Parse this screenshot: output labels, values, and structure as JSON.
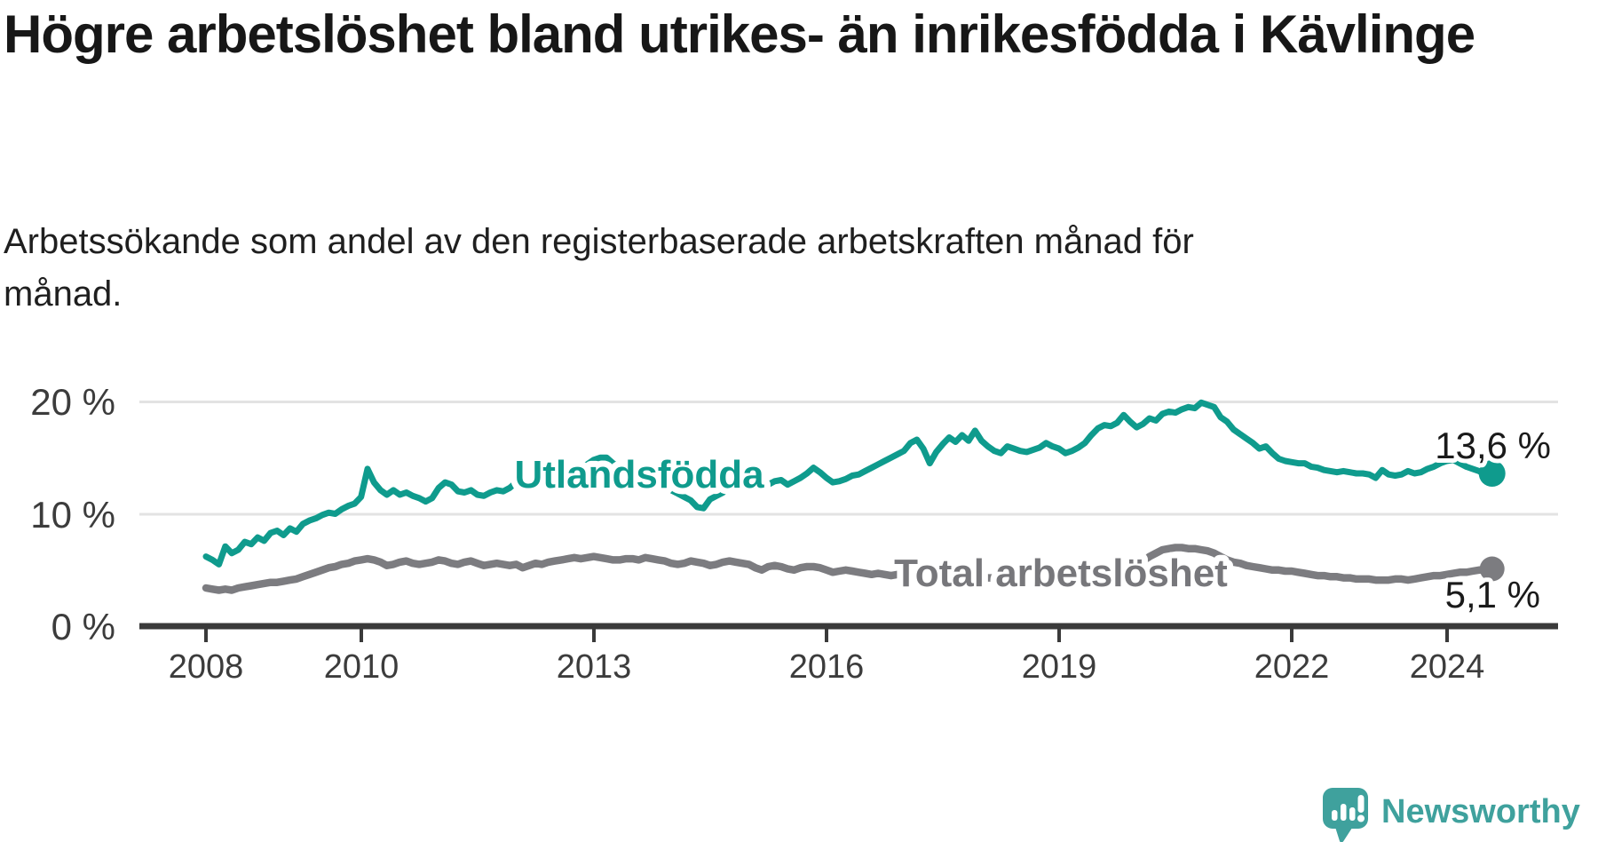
{
  "header": {
    "title": "Högre arbetslöshet bland utrikes- än inrikesfödda i Kävlinge",
    "subtitle": "Arbetssökande som andel av den registerbaserade arbetskraften månad för månad."
  },
  "chart_data": {
    "type": "line",
    "title": "Högre arbetslöshet bland utrikes- än inrikesfödda i Kävlinge",
    "xlabel": "",
    "ylabel": "",
    "x_start": 2008.0,
    "x_step_years": 0.083333,
    "x_range": [
      2008.0,
      2024.583
    ],
    "ylim": [
      0,
      21
    ],
    "grid": "horizontal",
    "legend_position": "inline-labels",
    "y_ticks": [
      {
        "value": 0,
        "label": "0 %"
      },
      {
        "value": 10,
        "label": "10 %"
      },
      {
        "value": 20,
        "label": "20 %"
      }
    ],
    "x_ticks": [
      {
        "value": 2008,
        "label": "2008"
      },
      {
        "value": 2010,
        "label": "2010"
      },
      {
        "value": 2013,
        "label": "2013"
      },
      {
        "value": 2016,
        "label": "2016"
      },
      {
        "value": 2019,
        "label": "2019"
      },
      {
        "value": 2022,
        "label": "2022"
      },
      {
        "value": 2024,
        "label": "2024"
      }
    ],
    "series": [
      {
        "id": "utlandsfodda",
        "label": "Utlandsfödda",
        "color": "#0f9b8d",
        "end_label": "13,6 %",
        "end_value": 13.6,
        "values": [
          6.2,
          5.9,
          5.5,
          7.1,
          6.5,
          6.8,
          7.5,
          7.3,
          7.9,
          7.6,
          8.3,
          8.5,
          8.1,
          8.7,
          8.4,
          9.1,
          9.4,
          9.6,
          9.9,
          10.1,
          10.0,
          10.4,
          10.7,
          10.9,
          11.5,
          14.0,
          12.8,
          12.1,
          11.7,
          12.1,
          11.7,
          11.9,
          11.6,
          11.4,
          11.1,
          11.4,
          12.3,
          12.8,
          12.6,
          12.0,
          11.9,
          12.1,
          11.7,
          11.6,
          11.9,
          12.1,
          12.0,
          12.3,
          12.8,
          12.7,
          12.9,
          13.0,
          12.9,
          13.1,
          13.2,
          13.1,
          13.4,
          13.7,
          14.1,
          14.4,
          14.8,
          15.0,
          15.0,
          14.5,
          14.1,
          13.8,
          13.6,
          13.4,
          13.1,
          12.9,
          12.7,
          12.4,
          12.1,
          11.8,
          11.5,
          11.2,
          10.6,
          10.5,
          11.3,
          11.6,
          11.9,
          12.4,
          12.8,
          13.0,
          13.2,
          13.3,
          13.1,
          12.6,
          12.9,
          13.0,
          12.6,
          12.9,
          13.2,
          13.6,
          14.1,
          13.7,
          13.2,
          12.8,
          12.9,
          13.1,
          13.4,
          13.5,
          13.8,
          14.1,
          14.4,
          14.7,
          15.0,
          15.3,
          15.6,
          16.3,
          16.6,
          15.8,
          14.5,
          15.5,
          16.2,
          16.8,
          16.4,
          17.0,
          16.5,
          17.4,
          16.5,
          16.0,
          15.6,
          15.4,
          16.0,
          15.8,
          15.6,
          15.5,
          15.7,
          15.9,
          16.3,
          16.0,
          15.8,
          15.4,
          15.6,
          15.9,
          16.3,
          17.0,
          17.6,
          17.9,
          17.8,
          18.1,
          18.8,
          18.2,
          17.7,
          18.0,
          18.5,
          18.3,
          18.9,
          19.1,
          19.0,
          19.3,
          19.5,
          19.4,
          19.9,
          19.7,
          19.5,
          18.6,
          18.2,
          17.5,
          17.1,
          16.7,
          16.3,
          15.8,
          16.0,
          15.4,
          14.9,
          14.7,
          14.6,
          14.5,
          14.5,
          14.2,
          14.1,
          13.9,
          13.8,
          13.7,
          13.8,
          13.7,
          13.6,
          13.6,
          13.5,
          13.2,
          13.9,
          13.5,
          13.4,
          13.5,
          13.8,
          13.6,
          13.7,
          14.0,
          14.2,
          14.5,
          14.7,
          14.8,
          14.5,
          14.2,
          14.0,
          13.8,
          13.4,
          13.6
        ]
      },
      {
        "id": "total",
        "label": "Total arbetslöshet",
        "color": "#7c7c80",
        "end_label": "5,1 %",
        "end_value": 5.1,
        "values": [
          3.4,
          3.3,
          3.2,
          3.3,
          3.2,
          3.4,
          3.5,
          3.6,
          3.7,
          3.8,
          3.9,
          3.9,
          4.0,
          4.1,
          4.2,
          4.4,
          4.6,
          4.8,
          5.0,
          5.2,
          5.3,
          5.5,
          5.6,
          5.8,
          5.9,
          6.0,
          5.9,
          5.7,
          5.4,
          5.5,
          5.7,
          5.8,
          5.6,
          5.5,
          5.6,
          5.7,
          5.9,
          5.8,
          5.6,
          5.5,
          5.7,
          5.8,
          5.6,
          5.4,
          5.5,
          5.6,
          5.5,
          5.4,
          5.5,
          5.2,
          5.4,
          5.6,
          5.5,
          5.7,
          5.8,
          5.9,
          6.0,
          6.1,
          6.0,
          6.1,
          6.2,
          6.1,
          6.0,
          5.9,
          5.9,
          6.0,
          6.0,
          5.9,
          6.1,
          6.0,
          5.9,
          5.8,
          5.6,
          5.5,
          5.6,
          5.8,
          5.7,
          5.6,
          5.4,
          5.5,
          5.7,
          5.8,
          5.7,
          5.6,
          5.5,
          5.2,
          5.0,
          5.3,
          5.4,
          5.3,
          5.1,
          5.0,
          5.2,
          5.3,
          5.3,
          5.2,
          5.0,
          4.8,
          4.9,
          5.0,
          4.9,
          4.8,
          4.7,
          4.6,
          4.7,
          4.6,
          4.5,
          4.6,
          4.6,
          4.5,
          4.4,
          4.5,
          4.4,
          4.3,
          4.4,
          4.5,
          4.4,
          4.5,
          4.4,
          4.5,
          4.4,
          4.3,
          4.3,
          4.4,
          4.3,
          4.4,
          4.5,
          4.4,
          4.5,
          4.6,
          4.5,
          4.6,
          4.6,
          4.7,
          4.7,
          4.8,
          4.8,
          4.9,
          5.0,
          5.0,
          5.1,
          5.2,
          5.3,
          5.4,
          5.5,
          5.7,
          6.2,
          6.5,
          6.8,
          6.9,
          7.0,
          7.0,
          6.9,
          6.9,
          6.8,
          6.7,
          6.5,
          6.2,
          5.9,
          5.7,
          5.6,
          5.4,
          5.3,
          5.2,
          5.1,
          5.0,
          5.0,
          4.9,
          4.9,
          4.8,
          4.7,
          4.6,
          4.5,
          4.5,
          4.4,
          4.4,
          4.3,
          4.3,
          4.2,
          4.2,
          4.2,
          4.1,
          4.1,
          4.1,
          4.2,
          4.2,
          4.1,
          4.2,
          4.3,
          4.4,
          4.5,
          4.5,
          4.6,
          4.7,
          4.8,
          4.8,
          4.9,
          5.0,
          5.0,
          5.1
        ]
      }
    ]
  },
  "branding": {
    "logo_text": "Newsworthy",
    "logo_color": "#3fa19d",
    "logo_icon": "newsworthy-chart-bubble-icon"
  },
  "colors": {
    "background": "#ffffff",
    "title_text": "#171717",
    "subtitle_text": "#1f1f1f",
    "axis": "#3a3a3a",
    "axis_labels": "#3c3c3c",
    "gridline": "#e3e3e3",
    "series_utlandsfodda": "#0f9b8d",
    "series_total": "#7c7c80"
  }
}
